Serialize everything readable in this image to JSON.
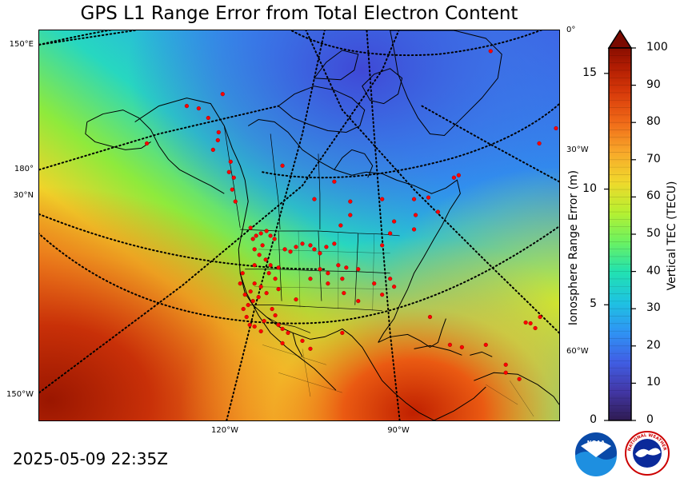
{
  "title": "GPS L1 Range Error from Total Electron Content",
  "timestamp": "2025-05-09 22:35Z",
  "left_axis_label": "Ionosphere Range Error (m)",
  "right_axis_label": "Vertical TEC (TECU)",
  "range_error_ticks": [
    "0",
    "5",
    "10",
    "15"
  ],
  "tec_ticks": [
    "0",
    "10",
    "20",
    "30",
    "40",
    "50",
    "60",
    "70",
    "80",
    "90",
    "100"
  ],
  "colorbar": {
    "min": 0,
    "max": 100,
    "extend": "max"
  },
  "grid_labels": {
    "left": [
      "150°E",
      "180°",
      "30°N",
      "150°W"
    ],
    "right": [
      "0°",
      "30°W",
      "60°W"
    ],
    "bottom": [
      "120°W",
      "90°W"
    ]
  },
  "logos": {
    "noaa": "NOAA",
    "nws": "NATIONAL WEATHER SERVICE"
  },
  "colors": {
    "station": "#ff0000",
    "low_tec": "#3a5fe0",
    "high_tec": "#b01a00"
  }
}
